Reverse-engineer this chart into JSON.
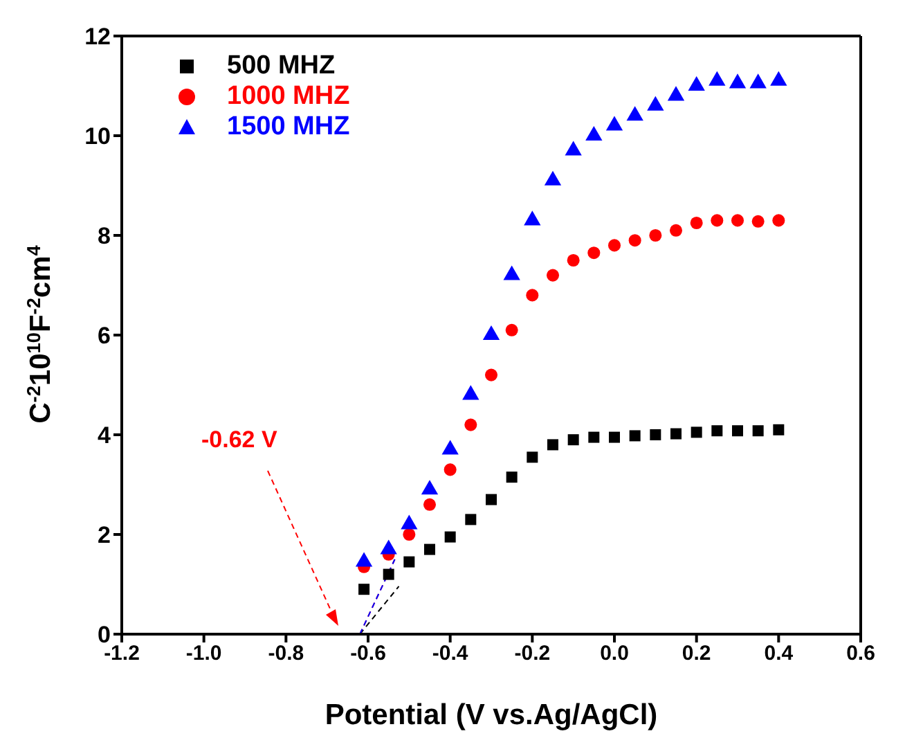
{
  "chart_data": {
    "type": "scatter",
    "xlabel": "Potential (V vs.Ag/AgCl)",
    "ylabel": "C$^{-2}$10$^{10}$F$^{-2}$cm$^{4}$",
    "xlim": [
      -1.2,
      0.6
    ],
    "xticks": [
      -1.2,
      {
        "value": -1.0,
        "label": "-1.0"
      },
      -0.8,
      -0.6,
      -0.4,
      -0.2,
      {
        "value": 0,
        "label": "0.0"
      },
      0.2,
      0.4,
      0.6
    ],
    "ylim": [
      0,
      12
    ],
    "yticks": [
      0,
      2,
      4,
      6,
      8,
      10,
      12
    ],
    "grid": false,
    "legend": "top left",
    "x": [
      -0.61,
      -0.55,
      -0.5,
      -0.45,
      -0.4,
      -0.35,
      -0.3,
      -0.25,
      -0.2,
      -0.15,
      -0.1,
      -0.05,
      0,
      0.05,
      0.1,
      0.15,
      0.2,
      0.25,
      0.3,
      0.35,
      0.4
    ],
    "series": [
      {
        "name": "500 MHZ",
        "color": "#000000",
        "marker": "square",
        "values": [
          0.9,
          1.2,
          1.45,
          1.7,
          1.95,
          2.3,
          2.7,
          3.15,
          3.55,
          3.8,
          3.9,
          3.95,
          3.95,
          3.98,
          4.0,
          4.02,
          4.05,
          4.08,
          4.08,
          4.08,
          4.1
        ]
      },
      {
        "name": "1000 MHZ",
        "color": "#ff0000",
        "marker": "circle",
        "values": [
          1.35,
          1.6,
          2.0,
          2.6,
          3.3,
          4.2,
          5.2,
          6.1,
          6.8,
          7.2,
          7.5,
          7.65,
          7.8,
          7.9,
          8.0,
          8.1,
          8.25,
          8.3,
          8.3,
          8.28,
          8.3
        ]
      },
      {
        "name": "1500 MHZ",
        "color": "#0000ff",
        "marker": "triangle",
        "values": [
          1.45,
          1.7,
          2.2,
          2.9,
          3.7,
          4.8,
          6.0,
          7.2,
          8.3,
          9.1,
          9.7,
          10.0,
          10.2,
          10.4,
          10.6,
          10.8,
          11.0,
          11.1,
          11.05,
          11.05,
          11.1
        ]
      },
      {
        "type": "line",
        "color": "#000000",
        "line_style": "dashed",
        "x": [
          -0.62,
          -0.525
        ],
        "values": [
          0,
          0.96
        ]
      },
      {
        "type": "line",
        "color": "#ff0000",
        "line_style": "dashed",
        "x": [
          -0.62,
          -0.535
        ],
        "values": [
          0,
          1.5
        ]
      },
      {
        "type": "line",
        "color": "#0000ff",
        "line_style": "dashed",
        "x": [
          -0.62,
          -0.535
        ],
        "values": [
          0,
          1.5
        ]
      }
    ],
    "annotations": [
      "-0.62 V"
    ]
  }
}
